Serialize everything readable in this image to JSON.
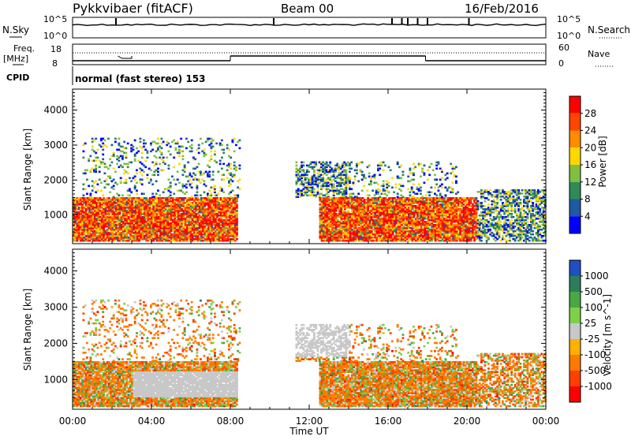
{
  "header": {
    "station": "Pykkvibaer (fitACF)",
    "beam": "Beam 00",
    "date": "16/Feb/2016"
  },
  "top_panels": {
    "nsky_label": "N.Sky",
    "nsky_ticks": [
      "10^5",
      "10^0"
    ],
    "nsearch_label": "N.Search",
    "nsearch_ticks": [
      "10^5",
      "10^0"
    ],
    "freq_label": "Freq.",
    "freq_unit": "[MHz]",
    "freq_ticks": [
      "18",
      "8"
    ],
    "nave_label": "Nave",
    "nave_ticks": [
      "60",
      "0"
    ],
    "cpid_label": "CPID",
    "cpid_text": "normal (fast stereo) 153"
  },
  "chart_data": [
    {
      "type": "heatmap",
      "name": "power",
      "ylabel": "Slant Range [km]",
      "yticks": [
        "4000",
        "3000",
        "2000",
        "1000"
      ],
      "ylim": [
        180,
        4600
      ],
      "colorbar": {
        "label": "Power [dB]",
        "ticks": [
          "28",
          "24",
          "20",
          "16",
          "12",
          "8",
          "4"
        ],
        "colors": [
          "#ff0000",
          "#ff4500",
          "#ff8c00",
          "#ffd700",
          "#80c040",
          "#2e8b57",
          "#1e5aa0",
          "#0000ff"
        ]
      },
      "echo_regions": [
        {
          "t": [
            0.0,
            8.3
          ],
          "r": [
            250,
            1500
          ],
          "level": "high"
        },
        {
          "t": [
            0.5,
            8.5
          ],
          "r": [
            1500,
            3200
          ],
          "level": "sparse"
        },
        {
          "t": [
            11.3,
            14.0
          ],
          "r": [
            1500,
            2500
          ],
          "level": "medium"
        },
        {
          "t": [
            12.5,
            20.5
          ],
          "r": [
            250,
            1500
          ],
          "level": "high"
        },
        {
          "t": [
            14.0,
            19.5
          ],
          "r": [
            1500,
            2500
          ],
          "level": "sparse"
        },
        {
          "t": [
            20.5,
            24.0
          ],
          "r": [
            250,
            1700
          ],
          "level": "medium"
        }
      ]
    },
    {
      "type": "heatmap",
      "name": "velocity",
      "ylabel": "Slant Range [km]",
      "yticks": [
        "4000",
        "3000",
        "2000",
        "1000"
      ],
      "ylim": [
        180,
        4600
      ],
      "colorbar": {
        "label": "Velocity [m s^-1]",
        "ticks": [
          "1000",
          "500",
          "100",
          "25",
          "-25",
          "-100",
          "-500",
          "-1000"
        ],
        "colors": [
          "#2050c0",
          "#2e7d5a",
          "#49a844",
          "#7ed04a",
          "#c8c8c8",
          "#ffb000",
          "#ff7a00",
          "#ff4000",
          "#ff0000"
        ]
      },
      "xlabel": "Time UT",
      "xticks": [
        "00:00",
        "04:00",
        "08:00",
        "12:00",
        "16:00",
        "20:00",
        "00:00"
      ],
      "xlim": [
        0,
        24
      ]
    }
  ],
  "nsky_trace": {
    "spikes_hours": [
      2.2,
      10.2,
      16.2,
      16.7,
      17.0,
      17.5,
      18.0,
      20.1
    ],
    "level": 0.18
  },
  "freq_trace": {
    "low_hours": [
      [
        0,
        8.0
      ],
      [
        17.9,
        24
      ]
    ],
    "high_hours": [
      [
        8.0,
        17.9
      ]
    ],
    "dip_hours": [
      2.3,
      3.0
    ]
  }
}
